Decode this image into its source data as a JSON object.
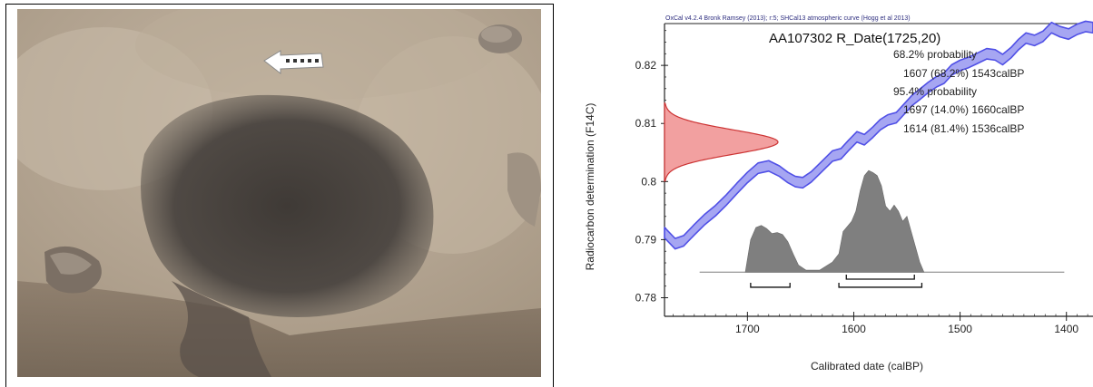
{
  "photo": {
    "colors": {
      "soil": "#b3a491",
      "dark_fill": "#4d4843",
      "shadow": "#6e6459",
      "scale_bar": "#ffffff"
    }
  },
  "chart_data": {
    "type": "line",
    "source_line": "OxCal v4.2.4 Bronk Ramsey (2013); r:5; SHCal13 atmospheric curve (Hogg et al 2013)",
    "title": "AA107302 R_Date(1725,20)",
    "xlabel": "Calibrated date (calBP)",
    "ylabel": "Radiocarbon determination (F14C)",
    "x_reversed": true,
    "xlim": [
      1778,
      1375
    ],
    "ylim": [
      0.7768,
      0.8272
    ],
    "xticks": [
      1700,
      1600,
      1500,
      1400
    ],
    "yticks": [
      0.78,
      0.79,
      0.8,
      0.81,
      0.82
    ],
    "ytick_labels": [
      "0.78",
      "0.79",
      "0.8",
      "0.81",
      "0.82"
    ],
    "annotations": [
      "68.2% probability",
      "1607 (68.2%) 1543calBP",
      "95.4% probability",
      "1697 (14.0%) 1660calBP",
      "1614 (81.4%) 1536calBP"
    ],
    "calibration_curve": {
      "x": [
        1778,
        1768,
        1760,
        1750,
        1740,
        1730,
        1720,
        1710,
        1700,
        1690,
        1680,
        1670,
        1662,
        1655,
        1648,
        1640,
        1630,
        1620,
        1612,
        1605,
        1597,
        1590,
        1582,
        1575,
        1568,
        1560,
        1552,
        1545,
        1538,
        1530,
        1522,
        1515,
        1508,
        1500,
        1492,
        1484,
        1475,
        1467,
        1460,
        1452,
        1445,
        1438,
        1430,
        1422,
        1414,
        1406,
        1398,
        1390,
        1382,
        1375
      ],
      "y": [
        0.7912,
        0.7893,
        0.7898,
        0.7917,
        0.7935,
        0.795,
        0.7968,
        0.7988,
        0.8007,
        0.8023,
        0.8027,
        0.8018,
        0.8007,
        0.8,
        0.7998,
        0.8008,
        0.8026,
        0.8044,
        0.8048,
        0.8062,
        0.8077,
        0.8072,
        0.8085,
        0.8098,
        0.8106,
        0.811,
        0.8126,
        0.814,
        0.815,
        0.8162,
        0.8172,
        0.8178,
        0.8192,
        0.82,
        0.8205,
        0.8212,
        0.822,
        0.8218,
        0.821,
        0.8222,
        0.8236,
        0.8247,
        0.8243,
        0.825,
        0.8265,
        0.8258,
        0.8254,
        0.8262,
        0.8267,
        0.8265
      ],
      "band_halfwidth": 0.0009,
      "color": "#5050e6",
      "fill": "#a6a6f2"
    },
    "measurement": {
      "mean": 0.8068,
      "sd": 0.0021,
      "color": "#cc3333",
      "fill": "#f2a0a0"
    },
    "calibrated_distribution": {
      "baseline": 0.7844,
      "peak_height": 0.0175,
      "x": [
        1702,
        1697,
        1692,
        1687,
        1682,
        1677,
        1672,
        1667,
        1662,
        1657,
        1652,
        1645,
        1632,
        1620,
        1614,
        1610,
        1606,
        1602,
        1598,
        1594,
        1590,
        1586,
        1582,
        1578,
        1574,
        1570,
        1566,
        1562,
        1558,
        1554,
        1550,
        1546,
        1542,
        1538,
        1534
      ],
      "density": [
        0,
        0.32,
        0.44,
        0.46,
        0.43,
        0.38,
        0.39,
        0.37,
        0.3,
        0.18,
        0.07,
        0.02,
        0.02,
        0.1,
        0.18,
        0.4,
        0.45,
        0.5,
        0.6,
        0.8,
        0.95,
        1.0,
        0.98,
        0.95,
        0.85,
        0.65,
        0.6,
        0.66,
        0.6,
        0.5,
        0.55,
        0.4,
        0.25,
        0.1,
        0
      ],
      "line_start": 1745,
      "line_end": 1402,
      "color": "#7f7f7f"
    },
    "range_brackets": [
      {
        "from": 1697,
        "to": 1660,
        "y": 0.7818
      },
      {
        "from": 1607,
        "to": 1543,
        "y": 0.7832
      },
      {
        "from": 1614,
        "to": 1536,
        "y": 0.7818
      }
    ]
  }
}
